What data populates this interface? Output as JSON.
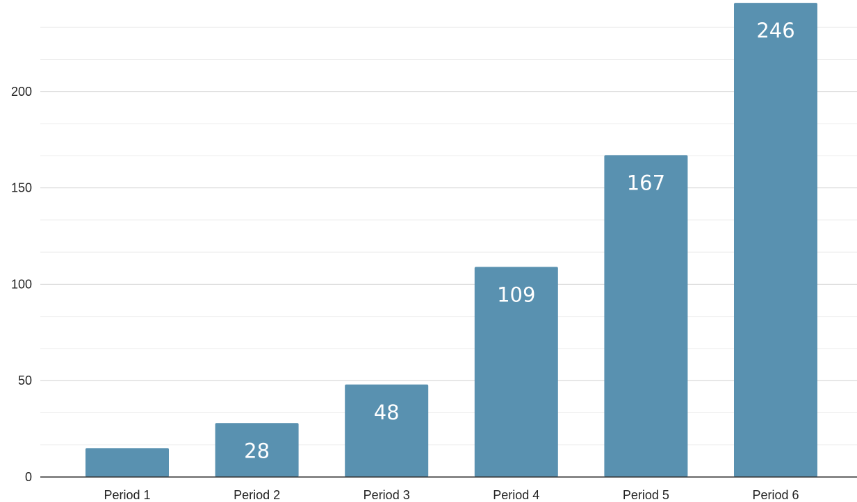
{
  "chart_data": {
    "type": "bar",
    "title": "",
    "xlabel": "",
    "ylabel": "",
    "categories": [
      "Period 1",
      "Period 2",
      "Period 3",
      "Period 4",
      "Period 5",
      "Period 6"
    ],
    "values": [
      15,
      28,
      48,
      109,
      167,
      246
    ],
    "data_labels": [
      "",
      "28",
      "48",
      "109",
      "167",
      "246"
    ],
    "ylim": [
      0,
      250
    ],
    "y_ticks": [
      0,
      50,
      100,
      150,
      200
    ],
    "y_tick_labels": [
      "0",
      "50",
      "100",
      "150",
      "200"
    ],
    "grid": true,
    "legend": "none",
    "colors": {
      "bar": "#5991b0",
      "grid_major": "#d0d0d0",
      "grid_minor": "#ebebeb",
      "axis": "#333333",
      "label": "#ffffff"
    }
  }
}
